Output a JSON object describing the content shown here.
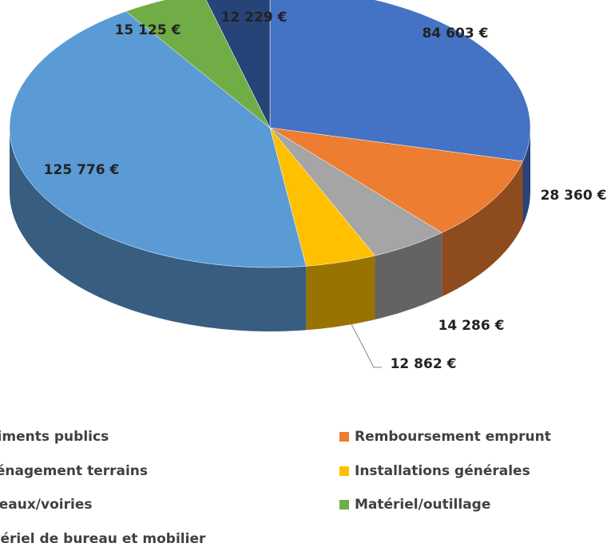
{
  "chart_data": {
    "type": "pie",
    "categories": [
      "Bâtiments publics",
      "Remboursement emprunt",
      "Aménagement terrains",
      "Installations générales",
      "Réseaux/voiries",
      "Matériel/outillage",
      "Matériel de bureau et mobilier"
    ],
    "values": [
      84603,
      28360,
      14286,
      12862,
      125776,
      15125,
      12229
    ],
    "value_labels": [
      "84 603 €",
      "28 360 €",
      "14 286 €",
      "12 862 €",
      "125 776 €",
      "15 125 €",
      "12 229 €"
    ],
    "colors": [
      "#4472c4",
      "#ed7d31",
      "#a5a5a5",
      "#ffc000",
      "#5b9bd5",
      "#70ad47",
      "#264478"
    ],
    "legend": "bottom"
  }
}
